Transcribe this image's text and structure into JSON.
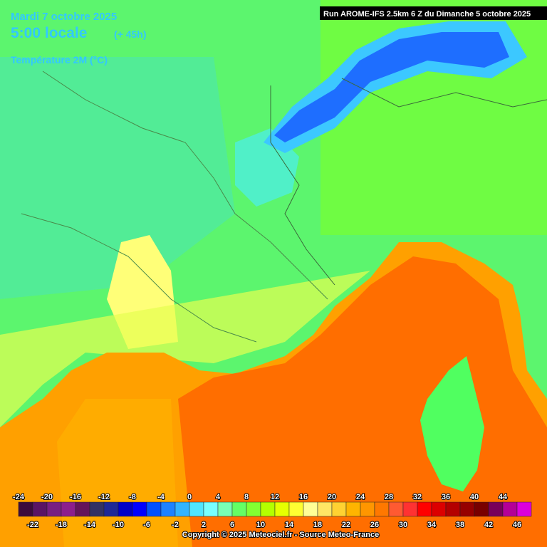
{
  "header": {
    "date": "Mardi 7 octobre 2025",
    "time": "5:00 locale",
    "lead": "(+ 45h)",
    "parameter": "Température 2M (°C)",
    "run": "Run AROME-IFS 2.5km 6 Z du Dimanche 5 octobre 2025"
  },
  "legend": {
    "top_labels": [
      -24,
      -20,
      -16,
      -12,
      -8,
      -4,
      0,
      4,
      8,
      12,
      16,
      20,
      24,
      28,
      32,
      36,
      40,
      44
    ],
    "bottom_labels": [
      -22,
      -18,
      -14,
      -10,
      -6,
      -2,
      2,
      6,
      10,
      14,
      18,
      22,
      26,
      30,
      34,
      38,
      42,
      46
    ],
    "colors": [
      "#3c0a3c",
      "#5a1464",
      "#781e82",
      "#8c1e8c",
      "#64145a",
      "#323264",
      "#1e2896",
      "#0000c8",
      "#0000ff",
      "#0050ff",
      "#1e82ff",
      "#32b4ff",
      "#50e6ff",
      "#78ffff",
      "#78ffb4",
      "#64ff64",
      "#82ff32",
      "#b4ff00",
      "#e6ff00",
      "#ffff32",
      "#ffff96",
      "#ffe664",
      "#ffd232",
      "#ffb400",
      "#ff9600",
      "#ff7800",
      "#ff5a32",
      "#ff3232",
      "#ff0000",
      "#dc0000",
      "#b40000",
      "#960000",
      "#780000",
      "#78005a",
      "#b40096",
      "#dc00dc"
    ]
  },
  "footer": {
    "copyright": "Copyright © 2025 Meteociel.fr - Source Meteo-France"
  }
}
